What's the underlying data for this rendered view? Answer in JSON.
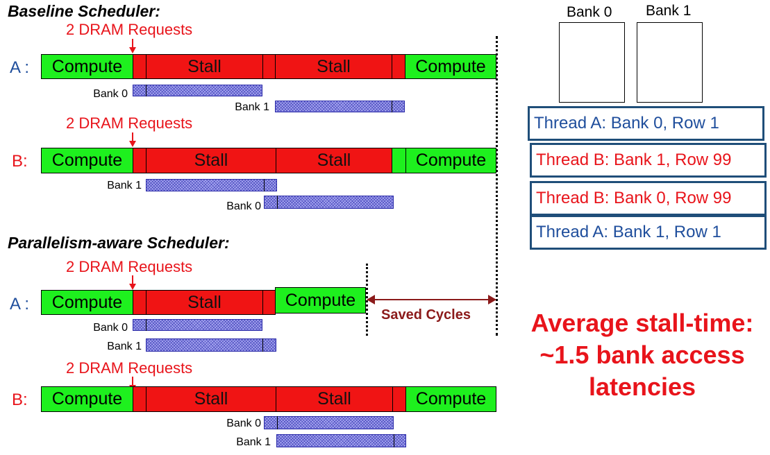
{
  "titles": {
    "baseline": "Baseline Scheduler:",
    "parallel": "Parallelism-aware Scheduler:"
  },
  "request_label": "2 DRAM Requests",
  "thread_labels": {
    "a": "A :",
    "b": "B:"
  },
  "segment_labels": {
    "compute": "Compute",
    "stall": "Stall"
  },
  "bank_labels": {
    "bank0": "Bank 0",
    "bank1": "Bank 1"
  },
  "saved_cycles": "Saved Cycles",
  "queue": [
    {
      "text": "Thread A: Bank 0, Row 1",
      "thread": "A"
    },
    {
      "text": "Thread B: Bank 1, Row 99",
      "thread": "B"
    },
    {
      "text": "Thread B: Bank 0, Row 99",
      "thread": "B"
    },
    {
      "text": "Thread A: Bank 1, Row 1",
      "thread": "A"
    }
  ],
  "summary": {
    "line1": "Average stall-time:",
    "line2": "~1.5 bank access",
    "line3": "latencies"
  },
  "colors": {
    "compute": "#1ef01e",
    "stall": "#f01414",
    "thread_a": "#1f4e9c",
    "thread_b": "#e8141b",
    "saved": "#8b1a1a"
  }
}
